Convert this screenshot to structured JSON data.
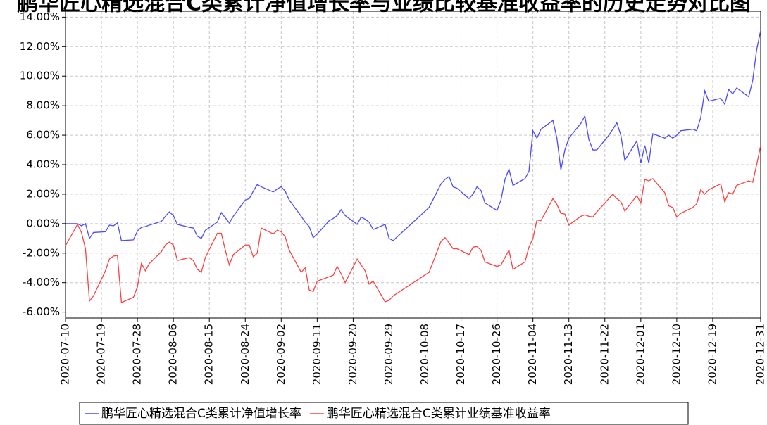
{
  "chart_data": {
    "type": "line",
    "title": "鹏华匠心精选混合C类累计净值增长率与业绩比较基准收益率的历史走势对比图",
    "x": [
      "2020-07-10",
      "2020-07-13",
      "2020-07-14",
      "2020-07-15",
      "2020-07-16",
      "2020-07-17",
      "2020-07-20",
      "2020-07-21",
      "2020-07-22",
      "2020-07-23",
      "2020-07-24",
      "2020-07-27",
      "2020-07-28",
      "2020-07-29",
      "2020-07-30",
      "2020-07-31",
      "2020-08-03",
      "2020-08-04",
      "2020-08-05",
      "2020-08-06",
      "2020-08-07",
      "2020-08-10",
      "2020-08-11",
      "2020-08-12",
      "2020-08-13",
      "2020-08-14",
      "2020-08-17",
      "2020-08-18",
      "2020-08-19",
      "2020-08-20",
      "2020-08-21",
      "2020-08-24",
      "2020-08-25",
      "2020-08-26",
      "2020-08-27",
      "2020-08-28",
      "2020-08-31",
      "2020-09-01",
      "2020-09-02",
      "2020-09-03",
      "2020-09-04",
      "2020-09-07",
      "2020-09-08",
      "2020-09-09",
      "2020-09-10",
      "2020-09-11",
      "2020-09-14",
      "2020-09-15",
      "2020-09-16",
      "2020-09-17",
      "2020-09-18",
      "2020-09-21",
      "2020-09-22",
      "2020-09-23",
      "2020-09-24",
      "2020-09-25",
      "2020-09-28",
      "2020-09-29",
      "2020-09-30",
      "2020-10-09",
      "2020-10-12",
      "2020-10-13",
      "2020-10-14",
      "2020-10-15",
      "2020-10-16",
      "2020-10-19",
      "2020-10-20",
      "2020-10-21",
      "2020-10-22",
      "2020-10-23",
      "2020-10-26",
      "2020-10-27",
      "2020-10-28",
      "2020-10-29",
      "2020-10-30",
      "2020-11-02",
      "2020-11-03",
      "2020-11-04",
      "2020-11-05",
      "2020-11-06",
      "2020-11-09",
      "2020-11-10",
      "2020-11-11",
      "2020-11-12",
      "2020-11-13",
      "2020-11-16",
      "2020-11-17",
      "2020-11-18",
      "2020-11-19",
      "2020-11-20",
      "2020-11-23",
      "2020-11-24",
      "2020-11-25",
      "2020-11-26",
      "2020-11-27",
      "2020-11-30",
      "2020-12-01",
      "2020-12-02",
      "2020-12-03",
      "2020-12-04",
      "2020-12-07",
      "2020-12-08",
      "2020-12-09",
      "2020-12-10",
      "2020-12-11",
      "2020-12-14",
      "2020-12-15",
      "2020-12-16",
      "2020-12-17",
      "2020-12-18",
      "2020-12-21",
      "2020-12-22",
      "2020-12-23",
      "2020-12-24",
      "2020-12-25",
      "2020-12-28",
      "2020-12-29",
      "2020-12-30",
      "2020-12-31"
    ],
    "series": [
      {
        "name": "鹏华匠心精选混合C类累计净值增长率",
        "color": "#4a4aff",
        "values": [
          0,
          0,
          -0.15,
          0,
          -1,
          -0.6,
          -0.55,
          -0.1,
          -0.15,
          0.05,
          -1.15,
          -1.1,
          -0.5,
          -0.25,
          -0.2,
          -0.1,
          0.15,
          0.5,
          0.8,
          0.55,
          -0.05,
          -0.25,
          -0.3,
          -0.85,
          -1.0,
          -0.45,
          0.1,
          0.75,
          0.4,
          0.05,
          0.5,
          1.6,
          1.7,
          2.2,
          2.65,
          2.5,
          2.15,
          2.35,
          2.5,
          2.2,
          1.6,
          0.5,
          0.1,
          -0.2,
          -0.95,
          -0.7,
          0.2,
          0.35,
          0.55,
          0.95,
          0.55,
          -0.05,
          0.45,
          0.3,
          0.1,
          -0.4,
          -0.05,
          -1.0,
          -1.15,
          1.1,
          2.7,
          3.0,
          3.2,
          2.5,
          2.4,
          1.7,
          2.0,
          2.5,
          2.25,
          1.4,
          0.9,
          1.6,
          3.0,
          3.7,
          2.6,
          3.05,
          3.55,
          6.3,
          5.8,
          6.4,
          7.0,
          5.8,
          3.65,
          5.0,
          5.8,
          6.8,
          7.3,
          5.7,
          5.0,
          5.0,
          6.0,
          6.4,
          6.85,
          6.0,
          4.3,
          5.6,
          4.1,
          5.3,
          4.1,
          6.1,
          5.8,
          6.0,
          5.8,
          6.0,
          6.3,
          6.4,
          6.3,
          7.2,
          9.0,
          8.3,
          8.5,
          8.1,
          9.1,
          8.8,
          9.2,
          8.6,
          9.7,
          11.8,
          13.1
        ]
      },
      {
        "name": "鹏华匠心精选混合C类累计业绩基准收益率",
        "color": "#ff4040",
        "values": [
          -1.5,
          -0.05,
          -0.6,
          -1.7,
          -5.25,
          -4.9,
          -3.2,
          -2.4,
          -2.2,
          -2.15,
          -5.35,
          -5.0,
          -4.3,
          -2.7,
          -3.2,
          -2.7,
          -1.9,
          -1.45,
          -1.25,
          -1.45,
          -2.5,
          -2.3,
          -2.5,
          -3.1,
          -3.3,
          -2.3,
          -0.65,
          -0.65,
          -1.8,
          -2.8,
          -2.1,
          -1.45,
          -1.45,
          -2.25,
          -2.0,
          -0.3,
          -0.7,
          -0.45,
          -0.55,
          -0.9,
          -1.8,
          -3.3,
          -3.0,
          -4.5,
          -4.6,
          -3.9,
          -3.6,
          -3.5,
          -2.9,
          -3.4,
          -4.0,
          -2.4,
          -2.8,
          -3.2,
          -4.1,
          -3.9,
          -5.3,
          -5.2,
          -4.9,
          -3.3,
          -1.2,
          -0.95,
          -1.3,
          -1.7,
          -1.7,
          -2.1,
          -1.6,
          -1.55,
          -1.8,
          -2.6,
          -2.9,
          -2.8,
          -2.3,
          -1.8,
          -3.1,
          -2.6,
          -1.6,
          -1.0,
          0.25,
          0.2,
          1.7,
          1.3,
          0.7,
          0.65,
          -0.1,
          0.5,
          0.6,
          0.5,
          0.45,
          0.8,
          1.7,
          2.0,
          1.7,
          1.5,
          0.85,
          1.9,
          1.4,
          3.0,
          2.9,
          3.05,
          2.1,
          1.2,
          1.1,
          0.45,
          0.7,
          1.1,
          1.35,
          2.3,
          2.0,
          2.3,
          2.7,
          1.5,
          2.1,
          2.0,
          2.6,
          2.9,
          2.8,
          4.0,
          5.3
        ]
      }
    ],
    "xlim": [
      "2020-07-10",
      "2020-12-31"
    ],
    "xticks": [
      "2020-07-10",
      "2020-07-19",
      "2020-07-28",
      "2020-08-06",
      "2020-08-15",
      "2020-08-24",
      "2020-09-02",
      "2020-09-11",
      "2020-09-20",
      "2020-09-29",
      "2020-10-08",
      "2020-10-17",
      "2020-10-26",
      "2020-11-04",
      "2020-11-13",
      "2020-11-22",
      "2020-12-01",
      "2020-12-10",
      "2020-12-19",
      "2020-12-31"
    ],
    "ylim": [
      -6.4,
      14.4
    ],
    "yticks": [
      {
        "value": 14,
        "label": "14.00%"
      },
      {
        "value": 12,
        "label": "12.00%"
      },
      {
        "value": 10,
        "label": "10.00%"
      },
      {
        "value": 8,
        "label": "8.00%"
      },
      {
        "value": 6,
        "label": "6.00%"
      },
      {
        "value": 4,
        "label": "4.00%"
      },
      {
        "value": 2,
        "label": "2.00%"
      },
      {
        "value": 0,
        "label": "0.00%"
      },
      {
        "value": -2,
        "label": "-2.00%"
      },
      {
        "value": -4,
        "label": "-4.00%"
      },
      {
        "value": -6,
        "label": "-6.00%"
      }
    ],
    "grid": true
  }
}
